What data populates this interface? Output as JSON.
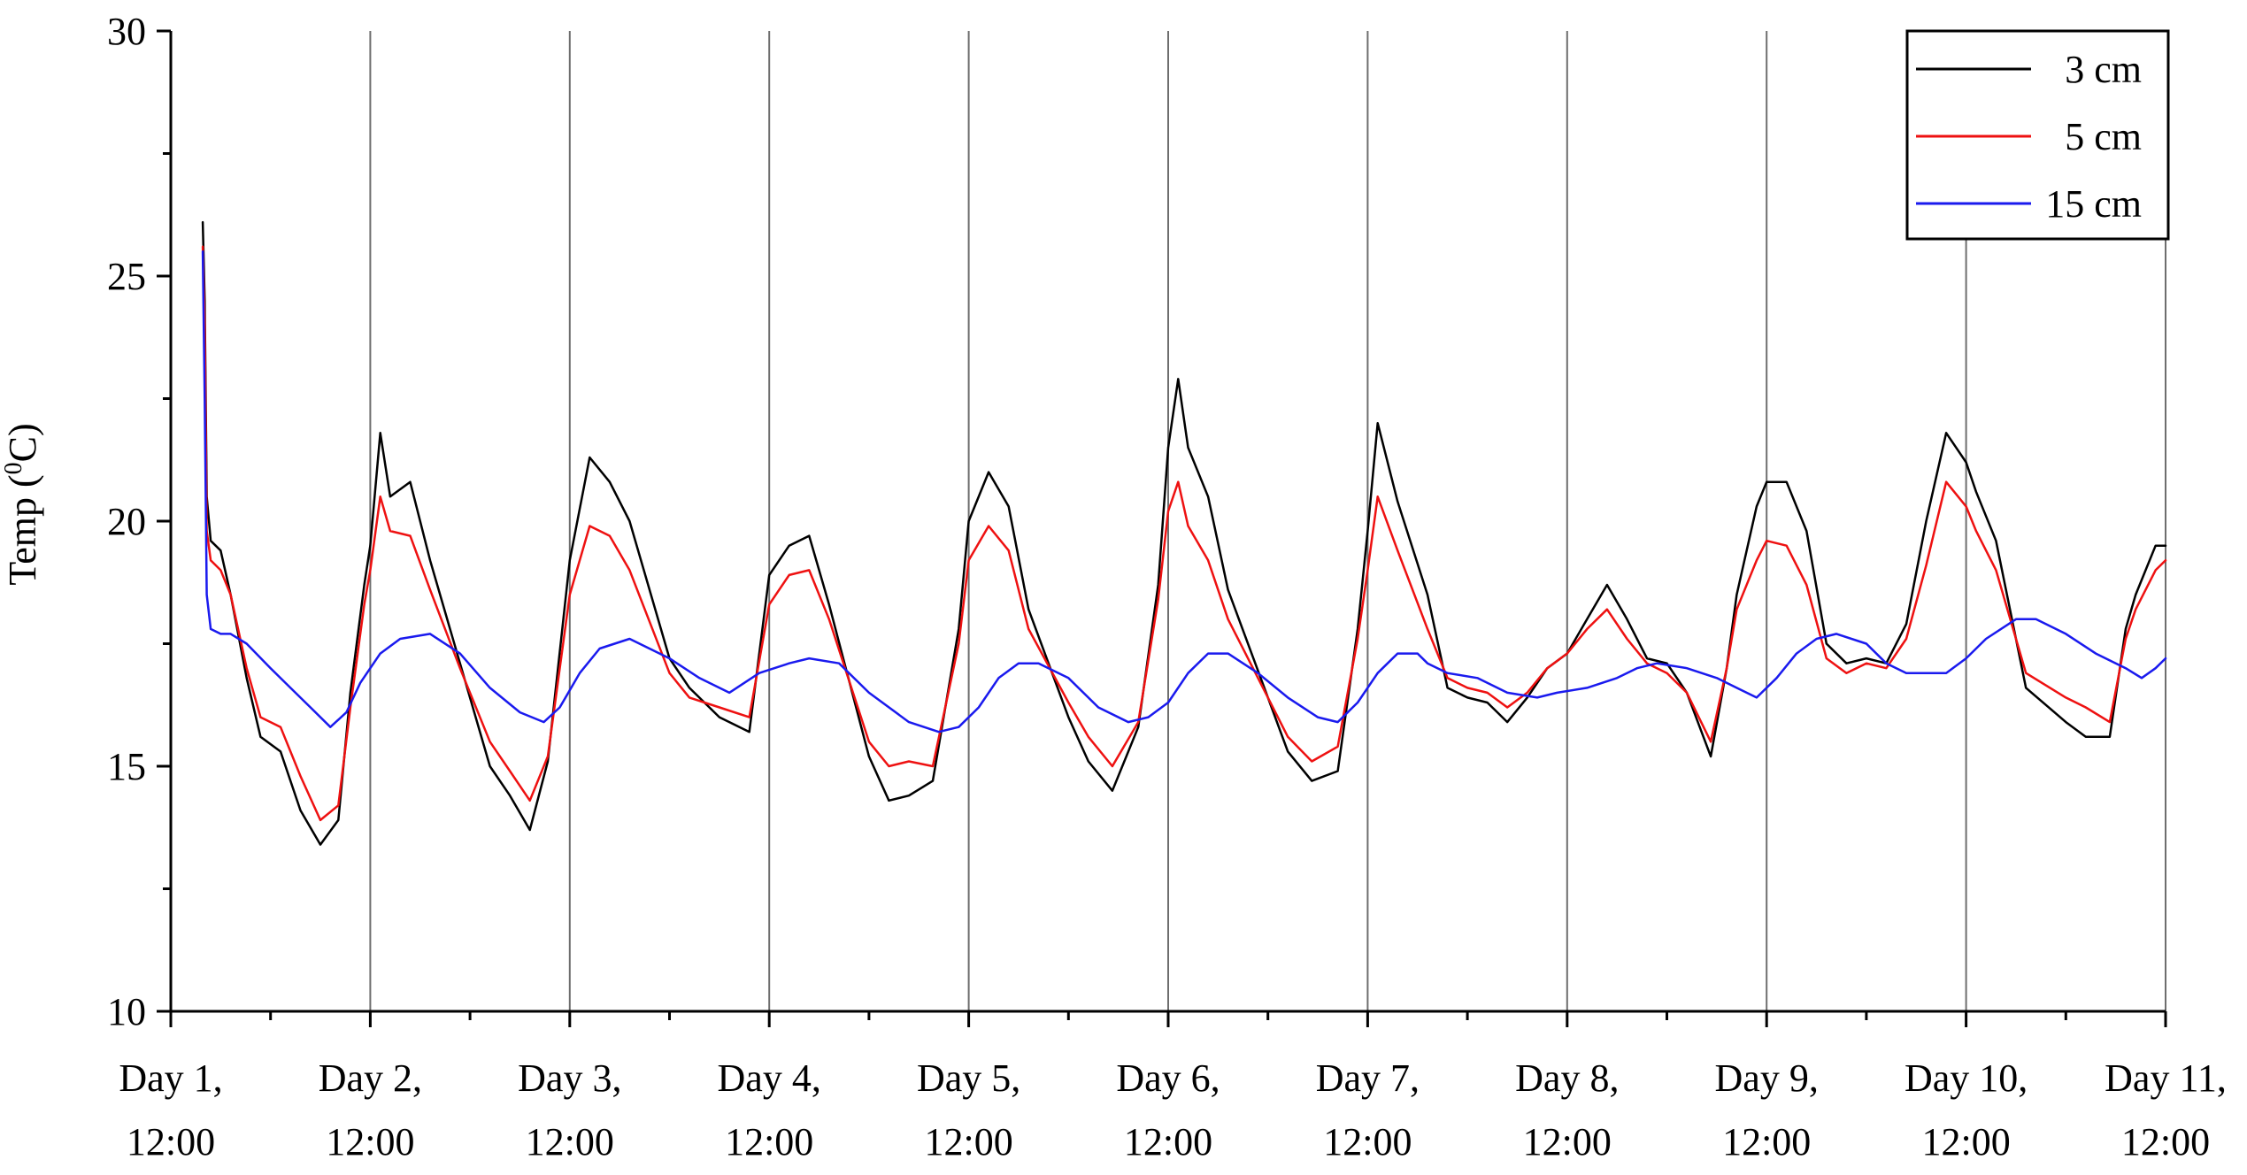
{
  "chart_data": {
    "type": "line",
    "title": "",
    "xlabel": "",
    "ylabel": "Temp (⁰C)",
    "ylabel_main": "Temp (",
    "ylabel_sup": "0",
    "ylabel_unit": "C)",
    "xlim": [
      0,
      10
    ],
    "ylim": [
      10,
      30
    ],
    "yticks": [
      "10",
      "15",
      "20",
      "25",
      "30"
    ],
    "x_ticks": [
      {
        "line1": "Day 1,",
        "line2": "12:00"
      },
      {
        "line1": "Day 2,",
        "line2": "12:00"
      },
      {
        "line1": "Day 3,",
        "line2": "12:00"
      },
      {
        "line1": "Day 4,",
        "line2": "12:00"
      },
      {
        "line1": "Day 5,",
        "line2": "12:00"
      },
      {
        "line1": "Day 6,",
        "line2": "12:00"
      },
      {
        "line1": "Day 7,",
        "line2": "12:00"
      },
      {
        "line1": "Day 8,",
        "line2": "12:00"
      },
      {
        "line1": "Day 9,",
        "line2": "12:00"
      },
      {
        "line1": "Day 10,",
        "line2": "12:00"
      },
      {
        "line1": "Day 11,",
        "line2": "12:00"
      }
    ],
    "grid": "vertical lines at each day tick",
    "legend": {
      "placement": "top-right"
    },
    "series": [
      {
        "name": "3 cm",
        "color": "#000000",
        "x": [
          0.16,
          0.17,
          0.18,
          0.2,
          0.25,
          0.3,
          0.38,
          0.45,
          0.55,
          0.65,
          0.75,
          0.84,
          0.9,
          0.97,
          1.0,
          1.05,
          1.1,
          1.2,
          1.3,
          1.45,
          1.6,
          1.7,
          1.8,
          1.89,
          2.0,
          2.1,
          2.2,
          2.3,
          2.5,
          2.6,
          2.75,
          2.9,
          3.0,
          3.1,
          3.2,
          3.3,
          3.5,
          3.6,
          3.7,
          3.82,
          3.95,
          4.0,
          4.1,
          4.2,
          4.3,
          4.5,
          4.6,
          4.72,
          4.85,
          4.95,
          5.0,
          5.05,
          5.1,
          5.2,
          5.3,
          5.5,
          5.6,
          5.72,
          5.85,
          5.95,
          6.0,
          6.05,
          6.15,
          6.3,
          6.4,
          6.5,
          6.6,
          6.7,
          6.8,
          6.9,
          7.0,
          7.1,
          7.2,
          7.3,
          7.4,
          7.5,
          7.6,
          7.72,
          7.8,
          7.85,
          7.95,
          8.0,
          8.1,
          8.2,
          8.3,
          8.4,
          8.5,
          8.6,
          8.7,
          8.8,
          8.9,
          9.0,
          9.05,
          9.15,
          9.3,
          9.5,
          9.6,
          9.72,
          9.8,
          9.85,
          9.95,
          10.0
        ],
        "y": [
          26.1,
          24.5,
          20.5,
          19.6,
          19.4,
          18.5,
          16.8,
          15.6,
          15.3,
          14.1,
          13.4,
          13.9,
          16.5,
          18.7,
          19.5,
          21.8,
          20.5,
          20.8,
          19.2,
          17.1,
          15.0,
          14.4,
          13.7,
          15.1,
          19.2,
          21.3,
          20.8,
          20.0,
          17.2,
          16.6,
          16.0,
          15.7,
          18.9,
          19.5,
          19.7,
          18.3,
          15.2,
          14.3,
          14.4,
          14.7,
          17.8,
          20.0,
          21.0,
          20.3,
          18.2,
          16.0,
          15.1,
          14.5,
          15.8,
          18.7,
          21.5,
          22.9,
          21.5,
          20.5,
          18.6,
          16.4,
          15.3,
          14.7,
          14.9,
          17.8,
          19.8,
          22.0,
          20.4,
          18.5,
          16.6,
          16.4,
          16.3,
          15.9,
          16.4,
          17.0,
          17.3,
          18.0,
          18.7,
          18.0,
          17.2,
          17.1,
          16.5,
          15.2,
          17.0,
          18.5,
          20.3,
          20.8,
          20.8,
          19.8,
          17.5,
          17.1,
          17.2,
          17.1,
          17.9,
          20.0,
          21.8,
          21.2,
          20.6,
          19.6,
          16.6,
          15.9,
          15.6,
          15.6,
          17.8,
          18.5,
          19.5,
          19.5
        ]
      },
      {
        "name": "5 cm",
        "color": "#ee1111",
        "x": [
          0.16,
          0.17,
          0.18,
          0.2,
          0.25,
          0.3,
          0.38,
          0.45,
          0.55,
          0.65,
          0.75,
          0.84,
          0.9,
          0.97,
          1.0,
          1.05,
          1.1,
          1.2,
          1.3,
          1.45,
          1.6,
          1.7,
          1.8,
          1.89,
          2.0,
          2.1,
          2.2,
          2.3,
          2.5,
          2.6,
          2.75,
          2.9,
          3.0,
          3.1,
          3.2,
          3.3,
          3.5,
          3.6,
          3.7,
          3.82,
          3.95,
          4.0,
          4.1,
          4.2,
          4.3,
          4.5,
          4.6,
          4.72,
          4.85,
          4.95,
          5.0,
          5.05,
          5.1,
          5.2,
          5.3,
          5.5,
          5.6,
          5.72,
          5.85,
          5.95,
          6.0,
          6.05,
          6.15,
          6.3,
          6.4,
          6.5,
          6.6,
          6.7,
          6.8,
          6.9,
          7.0,
          7.1,
          7.2,
          7.3,
          7.4,
          7.5,
          7.6,
          7.72,
          7.8,
          7.85,
          7.95,
          8.0,
          8.1,
          8.2,
          8.3,
          8.4,
          8.5,
          8.6,
          8.7,
          8.8,
          8.9,
          9.0,
          9.05,
          9.15,
          9.3,
          9.5,
          9.6,
          9.72,
          9.8,
          9.85,
          9.95,
          10.0
        ],
        "y": [
          25.6,
          24.0,
          19.8,
          19.2,
          19.0,
          18.5,
          17.0,
          16.0,
          15.8,
          14.8,
          13.9,
          14.2,
          16.2,
          18.3,
          19.0,
          20.5,
          19.8,
          19.7,
          18.6,
          17.0,
          15.5,
          14.9,
          14.3,
          15.2,
          18.5,
          19.9,
          19.7,
          19.0,
          16.9,
          16.4,
          16.2,
          16.0,
          18.3,
          18.9,
          19.0,
          18.0,
          15.5,
          15.0,
          15.1,
          15.0,
          17.5,
          19.2,
          19.9,
          19.4,
          17.8,
          16.3,
          15.6,
          15.0,
          15.9,
          18.4,
          20.2,
          20.8,
          19.9,
          19.2,
          18.0,
          16.4,
          15.6,
          15.1,
          15.4,
          17.6,
          19.0,
          20.5,
          19.4,
          17.8,
          16.8,
          16.6,
          16.5,
          16.2,
          16.5,
          17.0,
          17.3,
          17.8,
          18.2,
          17.6,
          17.1,
          16.9,
          16.5,
          15.5,
          17.0,
          18.2,
          19.2,
          19.6,
          19.5,
          18.7,
          17.2,
          16.9,
          17.1,
          17.0,
          17.6,
          19.1,
          20.8,
          20.3,
          19.8,
          19.0,
          16.9,
          16.4,
          16.2,
          15.9,
          17.6,
          18.2,
          19.0,
          19.2
        ]
      },
      {
        "name": "15 cm",
        "color": "#1a1aee",
        "x": [
          0.16,
          0.17,
          0.18,
          0.2,
          0.25,
          0.3,
          0.38,
          0.5,
          0.6,
          0.7,
          0.8,
          0.88,
          0.95,
          1.05,
          1.15,
          1.3,
          1.45,
          1.6,
          1.75,
          1.87,
          1.95,
          2.05,
          2.15,
          2.3,
          2.5,
          2.65,
          2.8,
          2.95,
          3.1,
          3.2,
          3.35,
          3.5,
          3.7,
          3.85,
          3.95,
          4.05,
          4.15,
          4.25,
          4.35,
          4.5,
          4.65,
          4.8,
          4.9,
          5.0,
          5.1,
          5.2,
          5.3,
          5.45,
          5.6,
          5.75,
          5.85,
          5.95,
          6.05,
          6.15,
          6.25,
          6.3,
          6.4,
          6.55,
          6.7,
          6.85,
          6.95,
          7.1,
          7.25,
          7.35,
          7.45,
          7.6,
          7.75,
          7.85,
          7.95,
          8.05,
          8.15,
          8.25,
          8.35,
          8.5,
          8.6,
          8.7,
          8.8,
          8.9,
          9.0,
          9.1,
          9.25,
          9.35,
          9.5,
          9.65,
          9.8,
          9.88,
          9.95,
          10.0
        ],
        "y": [
          25.5,
          22.5,
          18.5,
          17.8,
          17.7,
          17.7,
          17.5,
          17.0,
          16.6,
          16.2,
          15.8,
          16.1,
          16.7,
          17.3,
          17.6,
          17.7,
          17.3,
          16.6,
          16.1,
          15.9,
          16.2,
          16.9,
          17.4,
          17.6,
          17.2,
          16.8,
          16.5,
          16.9,
          17.1,
          17.2,
          17.1,
          16.5,
          15.9,
          15.7,
          15.8,
          16.2,
          16.8,
          17.1,
          17.1,
          16.8,
          16.2,
          15.9,
          16.0,
          16.3,
          16.9,
          17.3,
          17.3,
          16.9,
          16.4,
          16.0,
          15.9,
          16.3,
          16.9,
          17.3,
          17.3,
          17.1,
          16.9,
          16.8,
          16.5,
          16.4,
          16.5,
          16.6,
          16.8,
          17.0,
          17.1,
          17.0,
          16.8,
          16.6,
          16.4,
          16.8,
          17.3,
          17.6,
          17.7,
          17.5,
          17.1,
          16.9,
          16.9,
          16.9,
          17.2,
          17.6,
          18.0,
          18.0,
          17.7,
          17.3,
          17.0,
          16.8,
          17.0,
          17.2
        ]
      }
    ]
  }
}
